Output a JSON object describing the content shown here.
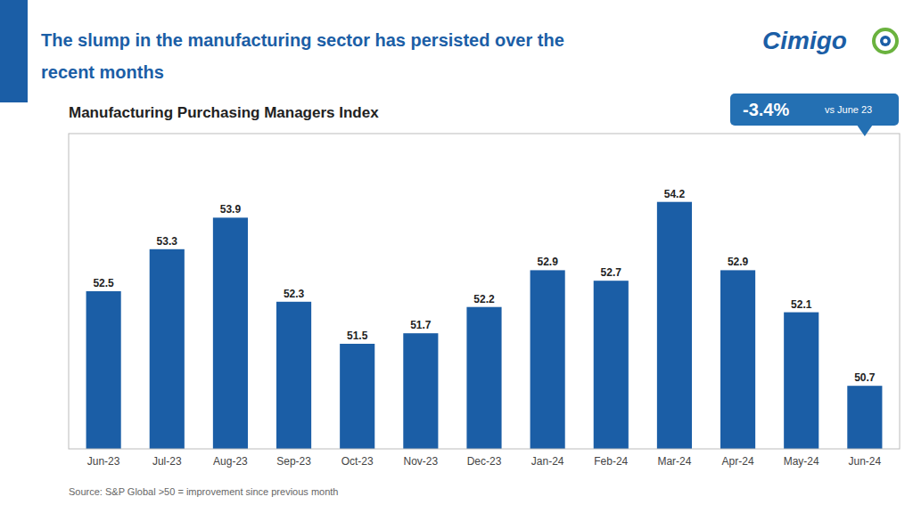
{
  "chart_data": {
    "type": "bar",
    "title": "Manufacturing Purchasing Managers Index",
    "header": [
      "The slump in the manufacturing sector has persisted over the",
      "recent months"
    ],
    "logo": "Cimigo",
    "annotations": [
      "-3.4%",
      "vs June 23"
    ],
    "source": "Source: S&P Global >50 = improvement since previous month",
    "categories": [
      "Jun-23",
      "Jul-23",
      "Aug-23",
      "Sep-23",
      "Oct-23",
      "Nov-23",
      "Dec-23",
      "Jan-24",
      "Feb-24",
      "Mar-24",
      "Apr-24",
      "May-24",
      "Jun-24"
    ],
    "values": [
      52.5,
      53.3,
      53.9,
      52.3,
      51.5,
      51.7,
      52.2,
      52.9,
      52.7,
      54.2,
      52.9,
      52.1,
      50.7
    ],
    "color": "#1B5EA6",
    "ylim": [
      49.5,
      55.5
    ],
    "yticks": [],
    "tick_labels": "x",
    "grid": false,
    "data_labels": true
  }
}
